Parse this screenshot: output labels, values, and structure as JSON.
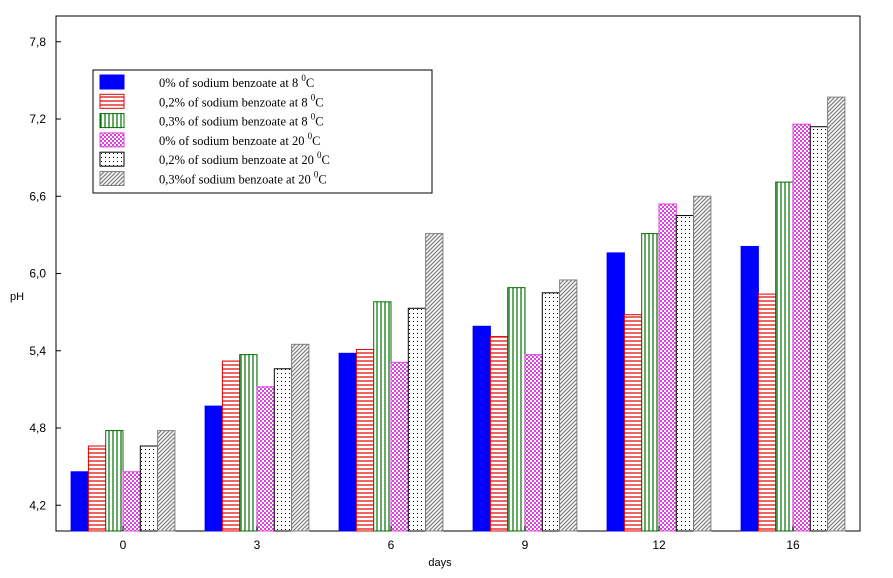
{
  "chart_data": {
    "type": "bar",
    "title": "",
    "xlabel": "days",
    "ylabel": "pH",
    "categories": [
      "0",
      "3",
      "6",
      "9",
      "12",
      "16"
    ],
    "yticks": [
      "4,2",
      "4,8",
      "5,4",
      "6,0",
      "6,6",
      "7,2",
      "7,8"
    ],
    "ytick_values": [
      4.2,
      4.8,
      5.4,
      6.0,
      6.6,
      7.2,
      7.8
    ],
    "ylim": [
      4.0,
      8.0
    ],
    "grid": false,
    "legend_position": "top-left",
    "series": [
      {
        "name": "0% of sodium benzoate at 8 ⁰C",
        "name_main": "0% of sodium benzoate at 8",
        "sup": "0",
        "unit": "C",
        "pattern": "solid",
        "color": "#0000ff",
        "values": [
          4.46,
          4.97,
          5.38,
          5.59,
          6.16,
          6.21
        ]
      },
      {
        "name": "0,2% of sodium benzoate at 8 ⁰C",
        "name_main": "0,2% of sodium benzoate at 8",
        "sup": "0",
        "unit": "C",
        "pattern": "hlines",
        "color": "#e00000",
        "values": [
          4.66,
          5.32,
          5.41,
          5.51,
          5.68,
          5.84
        ]
      },
      {
        "name": "0,3% of sodium benzoate at 8 ⁰C",
        "name_main": "0,3% of sodium benzoate at 8",
        "sup": "0",
        "unit": "C",
        "pattern": "vlines",
        "color": "#007000",
        "values": [
          4.78,
          5.37,
          5.78,
          5.89,
          6.31,
          6.71
        ]
      },
      {
        "name": "0% of sodium benzoate at 20 ⁰C",
        "name_main": "0% of sodium benzoate at 20",
        "sup": "0",
        "unit": "C",
        "pattern": "checker",
        "color": "#e040e0",
        "values": [
          4.46,
          5.12,
          5.31,
          5.37,
          6.54,
          7.16
        ]
      },
      {
        "name": "0,2% of sodium benzoate at 20 ⁰C",
        "name_main": "0,2% of sodium benzoate at 20",
        "sup": "0",
        "unit": "C",
        "pattern": "dots",
        "color": "#000000",
        "values": [
          4.66,
          5.26,
          5.73,
          5.85,
          6.45,
          7.14
        ]
      },
      {
        "name": "0,3%of sodium benzoate at 20 ⁰C",
        "name_main": "0,3%of sodium benzoate at 20",
        "sup": "0",
        "unit": "C",
        "pattern": "diag",
        "color": "#808080",
        "values": [
          4.78,
          5.45,
          6.31,
          5.95,
          6.6,
          7.37
        ]
      }
    ]
  }
}
